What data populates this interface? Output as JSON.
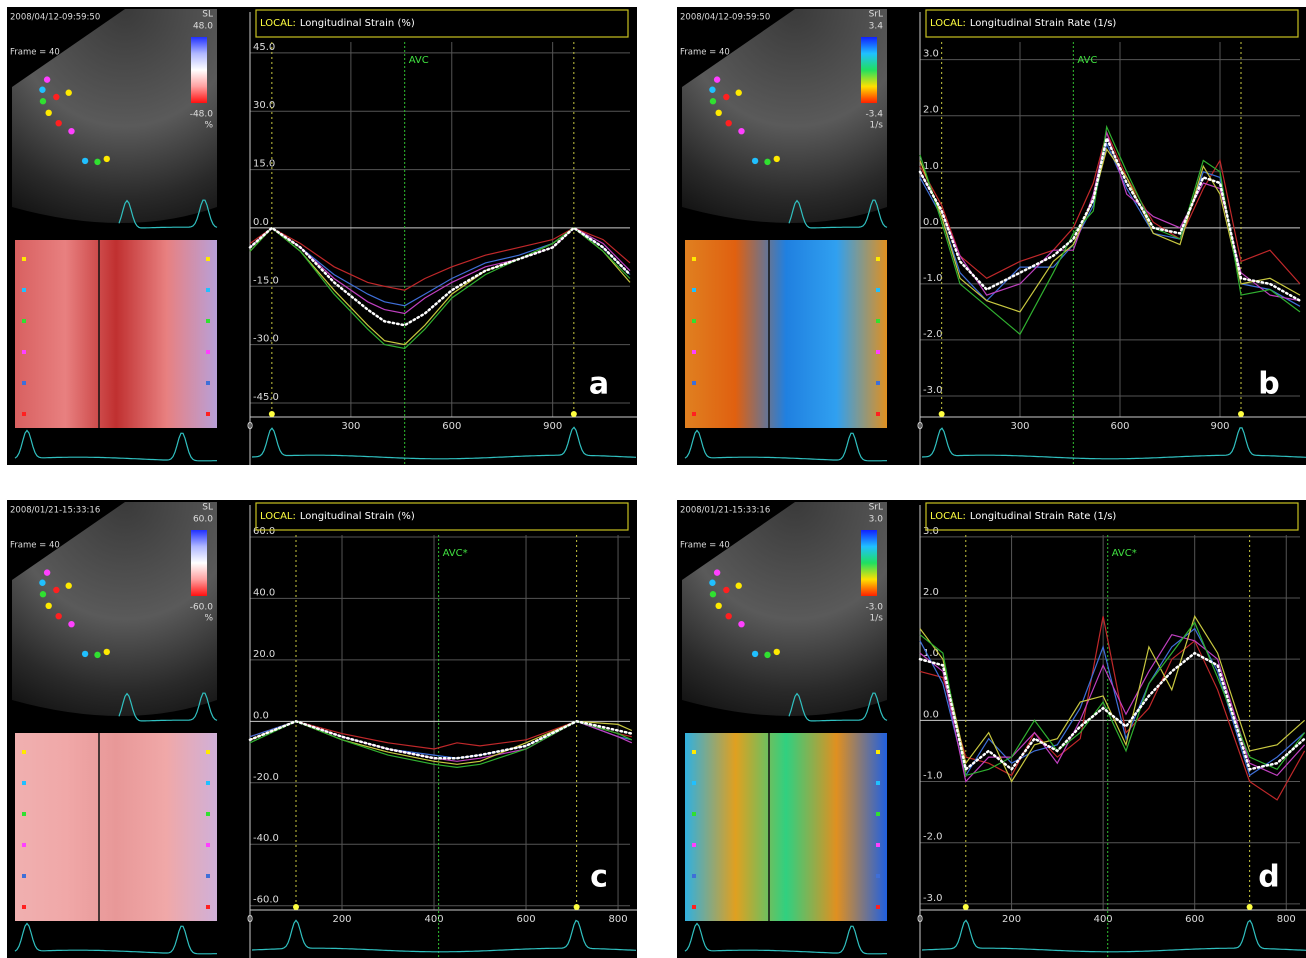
{
  "chart_data": [
    {
      "type": "line",
      "timestamp": "2008/04/12-09:59:50",
      "frame": "Frame = 40",
      "colorbar": {
        "title": "SL",
        "max": {
          "value": 48,
          "label": "48.0"
        },
        "min": {
          "value": -48,
          "label": "-48.0"
        },
        "unit": "%",
        "colors": [
          "#2030ff",
          "#b0b8ff",
          "#ffffff",
          "#ffa0a0",
          "#ff1010"
        ]
      },
      "mmode_colors": [
        "#d86060",
        "#e88080",
        "#c03030",
        "#e88080",
        "#b8a0d8"
      ],
      "label": "LOCAL:",
      "title": "Longitudinal Strain (%)",
      "annotation": "AVC",
      "annotation_x": 460,
      "markers_x": [
        65,
        963
      ],
      "panel_label": "a",
      "x": [
        0,
        65,
        150,
        250,
        350,
        400,
        460,
        520,
        600,
        700,
        800,
        900,
        963,
        1050,
        1130
      ],
      "xlim": [
        0,
        1130
      ],
      "xticks": [
        0,
        300,
        600,
        900
      ],
      "ylim": [
        -48.6,
        55.5
      ],
      "yticks": [
        {
          "value": 45,
          "label": "45.0"
        },
        {
          "value": 30,
          "label": "30.0"
        },
        {
          "value": 15,
          "label": "15.0"
        },
        {
          "value": 0,
          "label": "0.0"
        },
        {
          "value": -15,
          "label": "-15.0"
        },
        {
          "value": -30,
          "label": "-30.0"
        },
        {
          "value": -45,
          "label": "-45.0"
        }
      ],
      "grid": true,
      "series": [
        {
          "color": "#c0282a",
          "values": [
            -4,
            0,
            -4,
            -10,
            -14,
            -15,
            -16,
            -13,
            -10,
            -7,
            -5,
            -3,
            0,
            -3,
            -9
          ]
        },
        {
          "color": "#3f6fd8",
          "values": [
            -5,
            0,
            -5,
            -12,
            -17,
            -19,
            -20,
            -17,
            -13,
            -9,
            -7,
            -4,
            0,
            -5,
            -12
          ]
        },
        {
          "color": "#c040c0",
          "values": [
            -5,
            0,
            -5,
            -13,
            -19,
            -21,
            -22,
            -18,
            -14,
            -10,
            -8,
            -5,
            0,
            -4,
            -11
          ]
        },
        {
          "color": "#c8c840",
          "values": [
            -6,
            0,
            -6,
            -16,
            -25,
            -29,
            -30,
            -25,
            -17,
            -11,
            -8,
            -4,
            0,
            -6,
            -14
          ]
        },
        {
          "color": "#30b030",
          "values": [
            -6,
            0,
            -6,
            -17,
            -26,
            -30,
            -31,
            -26,
            -18,
            -12,
            -8,
            -4,
            0,
            -6,
            -13
          ]
        },
        {
          "color": "#ffffff",
          "style": "dotted",
          "values": [
            -5,
            0,
            -5,
            -14,
            -21,
            -24,
            -25,
            -22,
            -16,
            -11,
            -8,
            -5,
            0,
            -5,
            -12
          ]
        }
      ]
    },
    {
      "type": "line",
      "timestamp": "2008/04/12-09:59:50",
      "frame": "Frame = 40",
      "colorbar": {
        "title": "SrL",
        "max": {
          "value": 3.4,
          "label": "3.4"
        },
        "min": {
          "value": -3.4,
          "label": "-3.4"
        },
        "unit": "1/s",
        "colors": [
          "#1020ff",
          "#20c0ff",
          "#20e060",
          "#ffe000",
          "#ff2000"
        ]
      },
      "mmode_colors": [
        "#e08020",
        "#e06010",
        "#2080e0",
        "#30a0f0",
        "#e09020"
      ],
      "label": "LOCAL:",
      "title": "Longitudinal Strain Rate (1/s)",
      "annotation": "AVC",
      "annotation_x": 460,
      "markers_x": [
        65,
        963
      ],
      "panel_label": "b",
      "x": [
        0,
        65,
        120,
        200,
        300,
        400,
        460,
        520,
        560,
        620,
        700,
        780,
        850,
        900,
        963,
        1050,
        1140
      ],
      "xlim": [
        0,
        1140
      ],
      "xticks": [
        0,
        300,
        600,
        900
      ],
      "ylim": [
        -3.375,
        3.85
      ],
      "yticks": [
        {
          "value": 3,
          "label": "3.0"
        },
        {
          "value": 2,
          "label": "2.0"
        },
        {
          "value": 1,
          "label": "1.0"
        },
        {
          "value": 0,
          "label": "0.0"
        },
        {
          "value": -1,
          "label": "-1.0"
        },
        {
          "value": -2,
          "label": "-2.0"
        },
        {
          "value": -3,
          "label": "-3.0"
        }
      ],
      "grid": true,
      "series": [
        {
          "color": "#c0282a",
          "values": [
            1.1,
            0.4,
            -0.5,
            -0.9,
            -0.6,
            -0.4,
            0.0,
            0.8,
            1.7,
            0.9,
            0.1,
            -0.2,
            0.7,
            1.2,
            -0.6,
            -0.4,
            -1.0
          ]
        },
        {
          "color": "#3f6fd8",
          "values": [
            0.9,
            0.2,
            -0.8,
            -1.3,
            -0.7,
            -0.7,
            -0.3,
            0.4,
            1.5,
            0.7,
            -0.1,
            -0.2,
            1.0,
            0.9,
            -1.0,
            -1.1,
            -1.4
          ]
        },
        {
          "color": "#c040c0",
          "values": [
            1.0,
            0.3,
            -0.5,
            -1.2,
            -1.0,
            -0.4,
            -0.4,
            0.6,
            1.7,
            0.6,
            0.2,
            0.0,
            0.8,
            0.7,
            -0.8,
            -1.2,
            -1.3
          ]
        },
        {
          "color": "#c8c840",
          "values": [
            1.2,
            0.2,
            -0.9,
            -1.3,
            -1.5,
            -0.6,
            -0.3,
            0.5,
            1.4,
            0.9,
            -0.1,
            -0.3,
            1.1,
            0.6,
            -1.0,
            -0.9,
            -1.2
          ]
        },
        {
          "color": "#30b030",
          "values": [
            1.3,
            0.1,
            -1.0,
            -1.4,
            -1.9,
            -0.8,
            -0.1,
            0.3,
            1.8,
            1.0,
            0.0,
            -0.2,
            1.2,
            1.0,
            -1.2,
            -1.1,
            -1.5
          ]
        },
        {
          "color": "#ffffff",
          "style": "dotted",
          "values": [
            1.0,
            0.3,
            -0.6,
            -1.1,
            -0.8,
            -0.5,
            -0.2,
            0.5,
            1.6,
            0.8,
            0.0,
            -0.1,
            0.9,
            0.8,
            -0.9,
            -1.0,
            -1.3
          ]
        }
      ]
    },
    {
      "type": "line",
      "timestamp": "2008/01/21-15:33:16",
      "frame": "Frame = 40",
      "colorbar": {
        "title": "SL",
        "max": {
          "value": 60,
          "label": "60.0"
        },
        "min": {
          "value": -60,
          "label": "-60.0"
        },
        "unit": "%",
        "colors": [
          "#2030ff",
          "#b0b8ff",
          "#ffffff",
          "#ffa0a0",
          "#ff1010"
        ]
      },
      "mmode_colors": [
        "#f0b0b0",
        "#f0a8a8",
        "#e89898",
        "#f0a8a8",
        "#d0b0d8"
      ],
      "label": "LOCAL:",
      "title": "Longitudinal Strain (%)",
      "annotation": "AVC*",
      "annotation_x": 410,
      "markers_x": [
        100,
        710
      ],
      "panel_label": "c",
      "x": [
        0,
        100,
        200,
        300,
        400,
        450,
        500,
        600,
        710,
        800,
        830
      ],
      "xlim": [
        0,
        826
      ],
      "xticks": [
        0,
        200,
        400,
        600,
        800
      ],
      "ylim": [
        -61.4,
        70.4
      ],
      "yticks": [
        {
          "value": 60,
          "label": "60.0"
        },
        {
          "value": 40,
          "label": "40.0"
        },
        {
          "value": 20,
          "label": "20.0"
        },
        {
          "value": 0,
          "label": "0.0"
        },
        {
          "value": -20,
          "label": "-20.0"
        },
        {
          "value": -40,
          "label": "-40.0"
        },
        {
          "value": -60,
          "label": "-60.0"
        }
      ],
      "grid": true,
      "series": [
        {
          "color": "#c0282a",
          "values": [
            -5,
            0,
            -4,
            -7,
            -9,
            -7,
            -8,
            -6,
            0,
            -4,
            -5
          ]
        },
        {
          "color": "#3f6fd8",
          "values": [
            -5,
            0,
            -5,
            -9,
            -11,
            -12,
            -11,
            -8,
            0,
            -5,
            -6
          ]
        },
        {
          "color": "#c040c0",
          "values": [
            -6,
            0,
            -5,
            -9,
            -12,
            -13,
            -12,
            -9,
            0,
            -5,
            -7
          ]
        },
        {
          "color": "#c8c840",
          "values": [
            -6,
            0,
            -6,
            -10,
            -13,
            -14,
            -13,
            -7,
            0,
            -1,
            -3
          ]
        },
        {
          "color": "#30b030",
          "values": [
            -7,
            0,
            -6,
            -11,
            -14,
            -15,
            -14,
            -9,
            0,
            -4,
            -6
          ]
        },
        {
          "color": "#ffffff",
          "style": "dotted",
          "values": [
            -6,
            0,
            -5,
            -9,
            -12,
            -12,
            -11,
            -8,
            0,
            -3,
            -4
          ]
        }
      ]
    },
    {
      "type": "line",
      "timestamp": "2008/01/21-15:33:16",
      "frame": "Frame = 40",
      "colorbar": {
        "title": "SrL",
        "max": {
          "value": 3,
          "label": "3.0"
        },
        "min": {
          "value": -3,
          "label": "-3.0"
        },
        "unit": "1/s",
        "colors": [
          "#1020ff",
          "#20c0ff",
          "#20e060",
          "#ffe000",
          "#ff2000"
        ]
      },
      "mmode_colors": [
        "#30b0e0",
        "#e0a020",
        "#30d080",
        "#e09020",
        "#2060e0"
      ],
      "label": "LOCAL:",
      "title": "Longitudinal Strain Rate (1/s)",
      "annotation": "AVC*",
      "annotation_x": 410,
      "markers_x": [
        100,
        720
      ],
      "panel_label": "d",
      "x": [
        0,
        50,
        100,
        150,
        200,
        250,
        300,
        350,
        400,
        450,
        500,
        550,
        600,
        650,
        720,
        780,
        840
      ],
      "xlim": [
        0,
        830
      ],
      "xticks": [
        0,
        200,
        400,
        600,
        800
      ],
      "ylim": [
        -3.1,
        3.52
      ],
      "yticks": [
        {
          "value": 3,
          "label": "3.0"
        },
        {
          "value": 2,
          "label": "2.0"
        },
        {
          "value": 1,
          "label": "1.0"
        },
        {
          "value": 0,
          "label": "0.0"
        },
        {
          "value": -1,
          "label": "-1.0"
        },
        {
          "value": -2,
          "label": "-2.0"
        },
        {
          "value": -3,
          "label": "-3.0"
        }
      ],
      "grid": true,
      "series": [
        {
          "color": "#c0282a",
          "values": [
            0.8,
            0.7,
            -0.6,
            -0.7,
            -0.9,
            -0.2,
            -0.6,
            -0.3,
            1.7,
            -0.2,
            0.2,
            1.0,
            1.3,
            0.5,
            -1.0,
            -1.3,
            -0.5
          ]
        },
        {
          "color": "#3f6fd8",
          "values": [
            1.3,
            0.6,
            -0.9,
            -0.3,
            -0.7,
            -0.5,
            -0.4,
            0.2,
            1.2,
            -0.3,
            0.6,
            1.2,
            1.5,
            0.8,
            -0.9,
            -0.6,
            -0.2
          ]
        },
        {
          "color": "#c040c0",
          "values": [
            1.1,
            0.8,
            -1.0,
            -0.6,
            -0.6,
            -0.2,
            -0.7,
            0.0,
            0.9,
            0.1,
            0.8,
            1.4,
            1.3,
            1.0,
            -0.7,
            -0.9,
            -0.4
          ]
        },
        {
          "color": "#c8c840",
          "values": [
            1.5,
            1.0,
            -0.7,
            -0.2,
            -1.0,
            -0.4,
            -0.3,
            0.3,
            0.4,
            -0.4,
            1.2,
            0.5,
            1.7,
            1.1,
            -0.5,
            -0.4,
            0.0
          ]
        },
        {
          "color": "#30b030",
          "values": [
            1.4,
            1.1,
            -0.9,
            -0.8,
            -0.6,
            0.0,
            -0.5,
            -0.2,
            0.3,
            -0.5,
            0.6,
            1.1,
            1.6,
            0.7,
            -0.6,
            -0.8,
            -0.2
          ]
        },
        {
          "color": "#ffffff",
          "style": "dotted",
          "values": [
            1.0,
            0.9,
            -0.8,
            -0.5,
            -0.8,
            -0.3,
            -0.5,
            -0.1,
            0.2,
            -0.1,
            0.4,
            0.8,
            1.1,
            0.9,
            -0.8,
            -0.7,
            -0.3
          ]
        }
      ]
    }
  ]
}
